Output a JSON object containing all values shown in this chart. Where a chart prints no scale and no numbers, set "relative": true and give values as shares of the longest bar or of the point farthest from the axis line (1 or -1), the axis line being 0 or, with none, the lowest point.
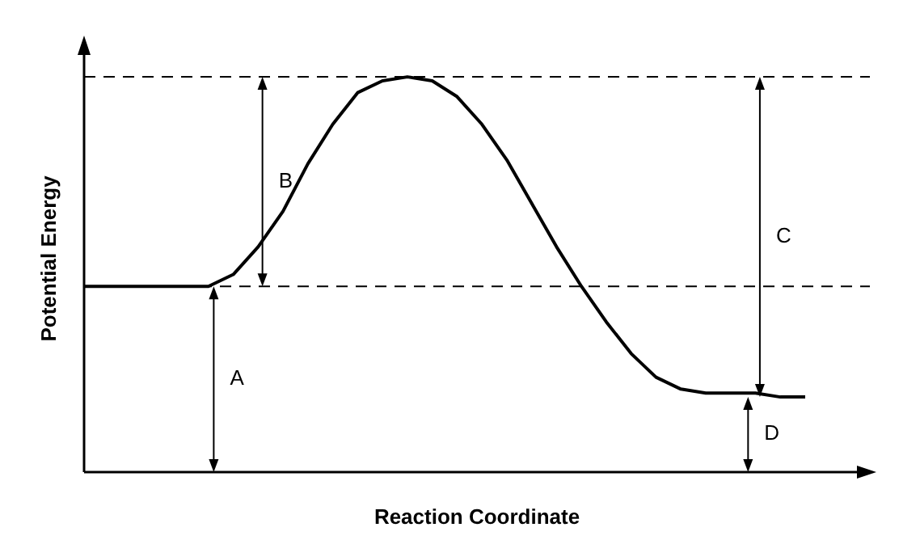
{
  "chart_data": {
    "type": "line",
    "xlabel": "Reaction Coordinate",
    "ylabel": "Potential Energy",
    "relative": true,
    "categories": [
      null,
      null,
      null,
      null,
      null,
      null,
      null,
      null,
      null,
      null,
      null,
      null,
      null,
      null,
      null,
      null,
      null,
      null,
      null,
      null,
      null,
      null,
      null,
      null,
      null,
      null,
      null,
      null,
      null,
      null
    ],
    "series": [
      {
        "color": "#000000",
        "values": [
          0.47,
          0.47,
          0.47,
          0.47,
          0.47,
          0.47,
          0.5,
          0.57,
          0.66,
          0.78,
          0.88,
          0.96,
          0.99,
          1,
          0.99,
          0.95,
          0.88,
          0.79,
          0.68,
          0.57,
          0.47,
          0.38,
          0.3,
          0.24,
          0.21,
          0.2,
          0.2,
          0.2,
          0.19,
          0.19
        ]
      }
    ],
    "ref_lines": [
      {
        "axis": "y",
        "value": 1,
        "line_style": "dashed",
        "color": "#000000"
      },
      {
        "axis": "y",
        "value": 0.47,
        "line_style": "dashed",
        "color": "#000000"
      }
    ],
    "annotations": [
      "A",
      "B",
      "C",
      "D"
    ]
  }
}
